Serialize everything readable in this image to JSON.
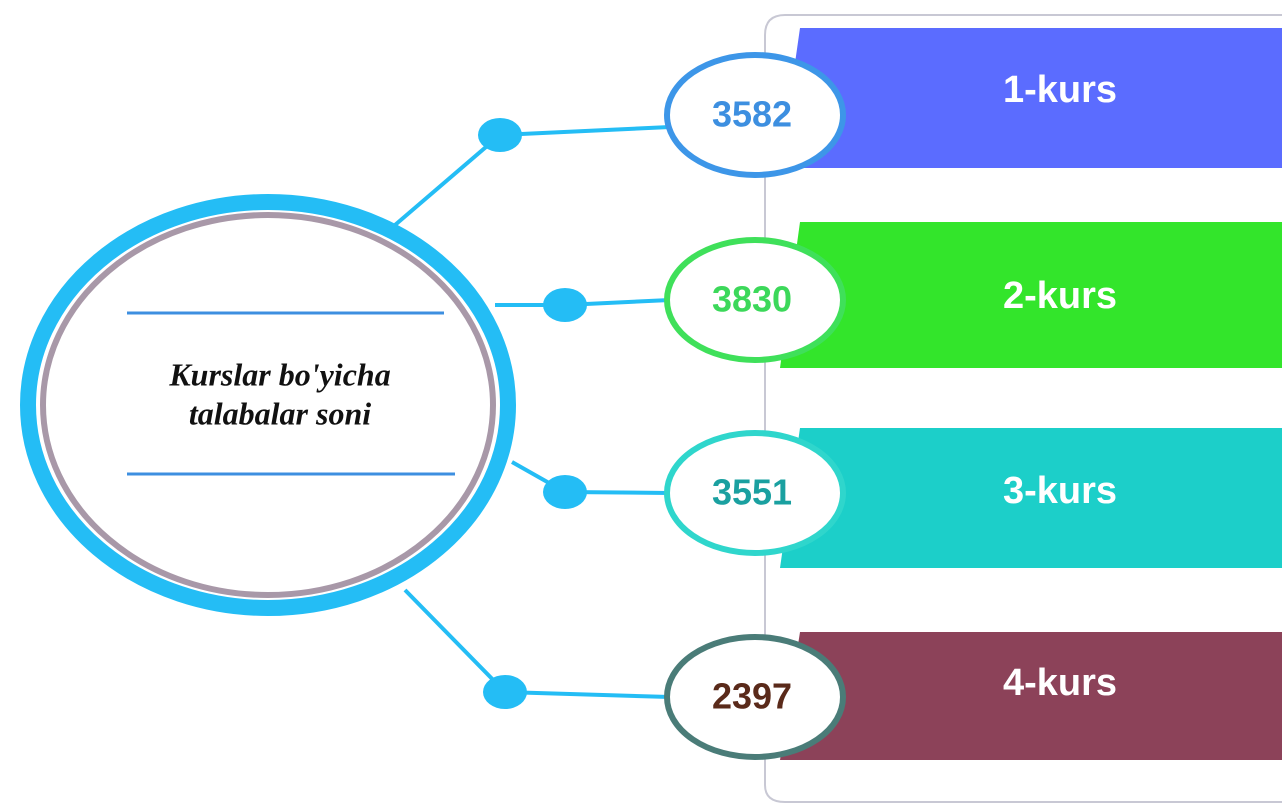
{
  "title_lines": [
    "Kurslar bo'yicha",
    "talabalar soni"
  ],
  "items": [
    {
      "value": 3582,
      "label": "1-kurs",
      "color": "#5b6cff",
      "ring": "#3d96e8",
      "text_color": "#3d8fe0"
    },
    {
      "value": 3830,
      "label": "2-kurs",
      "color": "#33e52b",
      "ring": "#3fe05a",
      "text_color": "#3cd85a"
    },
    {
      "value": 3551,
      "label": "3-kurs",
      "color": "#1ccfc9",
      "ring": "#2fd6cc",
      "text_color": "#1aa0a0"
    },
    {
      "value": 2397,
      "label": "4-kurs",
      "color": "#8c4259",
      "ring": "#4a7c78",
      "text_color": "#5a2a1a"
    }
  ]
}
